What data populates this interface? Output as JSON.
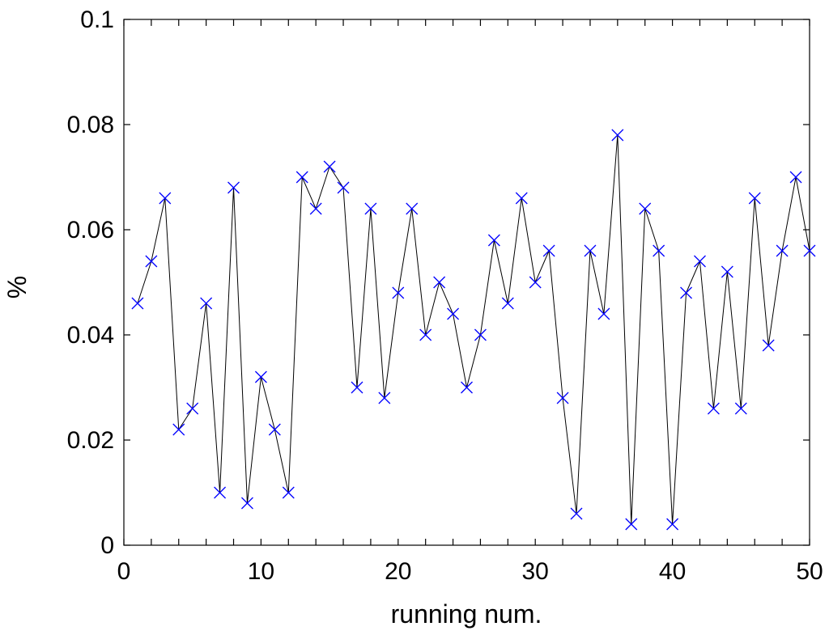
{
  "chart_data": {
    "type": "line",
    "title": "",
    "xlabel": "running num.",
    "ylabel": "%",
    "xlim": [
      0,
      50
    ],
    "ylim": [
      0,
      0.1
    ],
    "x_ticks": [
      0,
      10,
      20,
      30,
      40,
      50
    ],
    "x_tick_labels": [
      "0",
      "10",
      "20",
      "30",
      "40",
      "50"
    ],
    "y_ticks": [
      0,
      0.02,
      0.04,
      0.06,
      0.08,
      0.1
    ],
    "y_tick_labels": [
      "0",
      "0.02",
      "0.04",
      "0.06",
      "0.08",
      "0.1"
    ],
    "grid": false,
    "marker": "x",
    "line_color": "#000000",
    "marker_color": "#0000ff",
    "series": [
      {
        "x": [
          1,
          2,
          3,
          4,
          5,
          6,
          7,
          8,
          9,
          10,
          11,
          12,
          13,
          14,
          15,
          16,
          17,
          18,
          19,
          20,
          21,
          22,
          23,
          24,
          25,
          26,
          27,
          28,
          29,
          30,
          31,
          32,
          33,
          34,
          35,
          36,
          37,
          38,
          39,
          40,
          41,
          42,
          43,
          44,
          45,
          46,
          47,
          48,
          49,
          50
        ],
        "values": [
          0.046,
          0.054,
          0.066,
          0.022,
          0.026,
          0.046,
          0.01,
          0.068,
          0.008,
          0.032,
          0.022,
          0.01,
          0.07,
          0.064,
          0.072,
          0.068,
          0.03,
          0.064,
          0.028,
          0.048,
          0.064,
          0.04,
          0.05,
          0.044,
          0.03,
          0.04,
          0.058,
          0.046,
          0.066,
          0.05,
          0.056,
          0.028,
          0.006,
          0.056,
          0.044,
          0.078,
          0.004,
          0.064,
          0.056,
          0.004,
          0.048,
          0.054,
          0.026,
          0.052,
          0.026,
          0.066,
          0.038,
          0.056,
          0.07,
          0.056
        ]
      }
    ]
  }
}
